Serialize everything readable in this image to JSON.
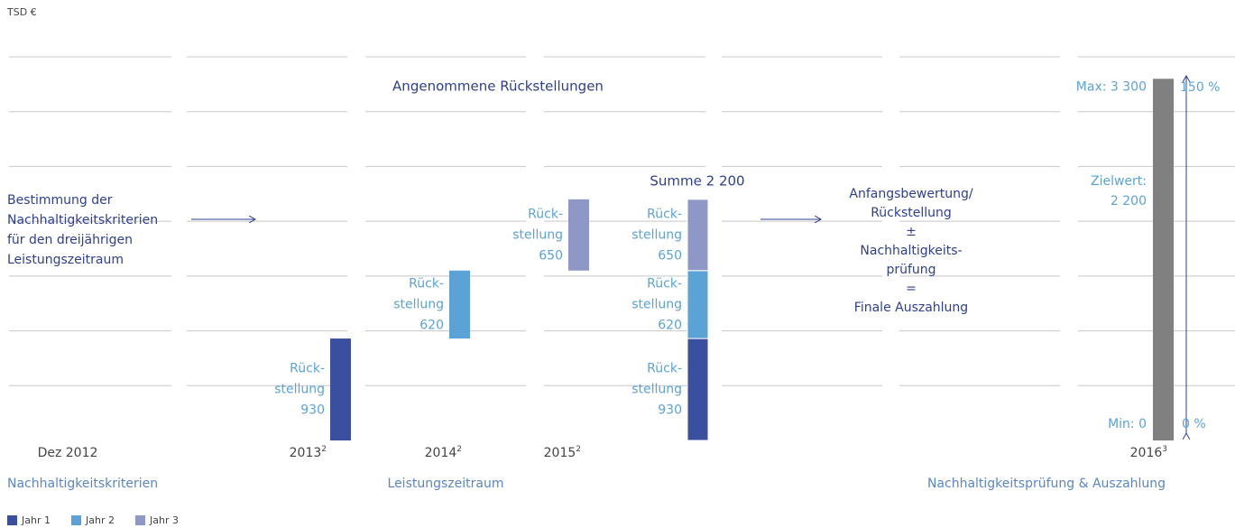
{
  "chart_data": {
    "type": "bar",
    "unit_label": "TSD €",
    "title": "Angenommene Rückstellungen",
    "ylim": [
      0,
      3500
    ],
    "yticks": [
      500,
      1000,
      1500,
      2000,
      2500,
      3000,
      3500
    ],
    "grid": true,
    "series": [
      {
        "name": "Jahr 1",
        "color": "#3a4fa0",
        "values": [
          930
        ]
      },
      {
        "name": "Jahr 2",
        "color": "#5ba3d6",
        "values": [
          620
        ]
      },
      {
        "name": "Jahr 3",
        "color": "#8f97c7",
        "values": [
          650
        ]
      }
    ],
    "bar_label": [
      "Rück-",
      "stellung"
    ],
    "total_label": "Summe 2 200",
    "final": {
      "color": "#808080",
      "values": [
        3300
      ],
      "value_labels": [
        "Max: 3 300"
      ]
    },
    "target_label": [
      "Zielwert:",
      "2 200"
    ],
    "min_label": "Min: 0",
    "percent_labels": [
      "150 %",
      "0 %"
    ],
    "x_labels": [
      {
        "label": "Dez 2012"
      },
      {
        "label": "2013",
        "note": "2"
      },
      {
        "label": "2014",
        "note": "2"
      },
      {
        "label": "2015",
        "note": "2"
      },
      {
        "label": "2016",
        "note": "3"
      }
    ],
    "phases": [
      "Nachhaltigkeitskriterien",
      "Leistungszeitraum",
      "Nachhaltigkeitsprüfung & Auszahlung"
    ],
    "left_text": [
      "Bestimmung der",
      "Nachhaltigkeitskriterien",
      "für den dreijährigen",
      "Leistungszeitraum"
    ],
    "formula_text": [
      "Anfangsbewertung/",
      "Rückstellung",
      "±",
      "Nachhaltigkeits-",
      "prüfung",
      "=",
      "Finale Auszahlung"
    ]
  }
}
